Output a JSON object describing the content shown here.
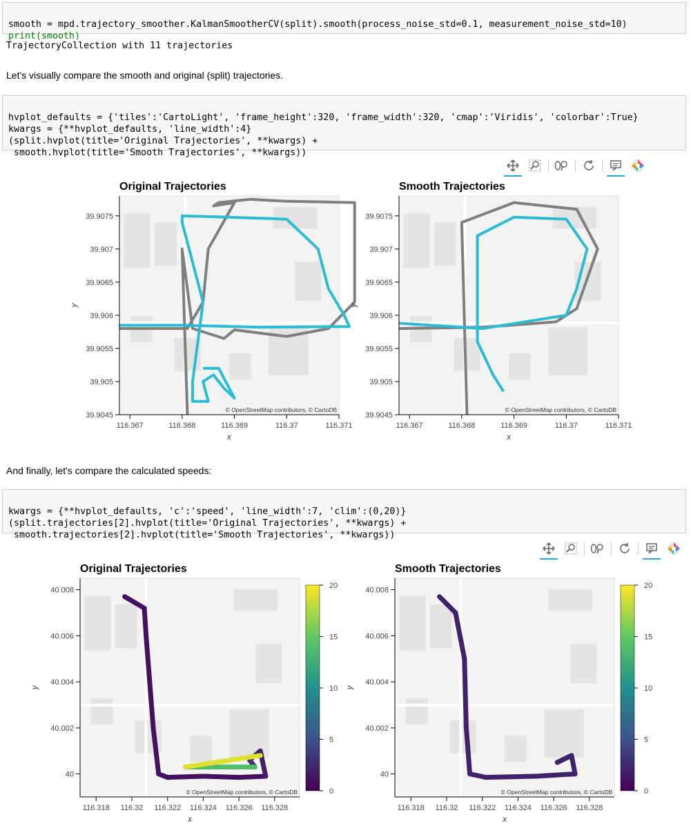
{
  "cell1": {
    "line1": "smooth = mpd.trajectory_smoother.KalmanSmootherCV(split).smooth(process_noise_std=0.1, measurement_noise_std=10)",
    "line2": "print(smooth)"
  },
  "out1": "TrajectoryCollection with 11 trajectories",
  "md1": "Let's visually compare the smooth and original (split) trajectories.",
  "cell2": {
    "line1": "hvplot_defaults = {'tiles':'CartoLight', 'frame_height':320, 'frame_width':320, 'cmap':'Viridis', 'colorbar':True}",
    "line2": "kwargs = {**hvplot_defaults, 'line_width':4}",
    "line3": "(split.hvplot(title='Original Trajectories', **kwargs) +",
    "line4": " smooth.hvplot(title='Smooth Trajectories', **kwargs))"
  },
  "md2": "And finally, let's compare the calculated speeds:",
  "cell3": {
    "line1": "kwargs = {**hvplot_defaults, 'c':'speed', 'line_width':7, 'clim':(0,20)}",
    "line2": "(split.trajectories[2].hvplot(title='Original Trajectories', **kwargs) +",
    "line3": " smooth.trajectories[2].hvplot(title='Smooth Trajectories', **kwargs))"
  },
  "toolbar_icons": [
    "pan-icon",
    "box-zoom-icon",
    "wheel-zoom-icon",
    "reset-icon",
    "hover-icon",
    "bokeh-logo-icon"
  ],
  "attribution": "© OpenStreetMap contributors, © CartoDB",
  "colors": {
    "teal": "#2bbcd4",
    "gray": "#7f7f7f",
    "viridis_low": "#440154",
    "viridis_high": "#fde725"
  },
  "chart_data": [
    {
      "type": "line",
      "title": "Original Trajectories",
      "xlabel": "x",
      "ylabel": "y",
      "xticks": [
        "116.367",
        "116.368",
        "116.369",
        "116.37",
        "116.371"
      ],
      "yticks": [
        "39.9045",
        "39.905",
        "39.9055",
        "39.906",
        "39.9065",
        "39.907",
        "39.9075"
      ],
      "xlim": [
        116.3668,
        116.371
      ],
      "ylim": [
        39.9045,
        39.9078
      ],
      "series": [
        {
          "color": "#7f7f7f",
          "x": [
            116.3668,
            116.3681,
            116.3684,
            116.3685,
            116.369,
            116.3686,
            116.3687,
            116.3693,
            116.37,
            116.3713,
            116.3713,
            116.3708,
            116.37,
            116.369,
            116.3688,
            116.3682,
            116.368,
            116.3681
          ],
          "y": [
            39.9058,
            39.9058,
            39.9062,
            39.907,
            39.9077,
            39.90765,
            39.9077,
            39.90775,
            39.90772,
            39.9077,
            39.9062,
            39.9058,
            39.90568,
            39.90578,
            39.90565,
            39.9058,
            39.907,
            39.9045
          ]
        },
        {
          "color": "#2bbcd4",
          "x": [
            116.3668,
            116.368,
            116.3695,
            116.3712,
            116.3711,
            116.3708,
            116.3706,
            116.37,
            116.3689,
            116.368,
            116.368,
            116.3684,
            116.3682,
            116.3682,
            116.3685,
            116.3684,
            116.3686,
            116.3688,
            116.369,
            116.3687,
            116.3684
          ],
          "y": [
            39.90585,
            39.90585,
            39.90582,
            39.90583,
            39.906,
            39.9064,
            39.907,
            39.90745,
            39.90748,
            39.9075,
            39.9074,
            39.9062,
            39.905,
            39.9047,
            39.9047,
            39.905,
            39.9051,
            39.9049,
            39.90475,
            39.9052,
            39.9052
          ]
        }
      ]
    },
    {
      "type": "line",
      "title": "Smooth Trajectories",
      "xlabel": "x",
      "ylabel": "y",
      "xticks": [
        "116.367",
        "116.368",
        "116.369",
        "116.37",
        "116.371"
      ],
      "yticks": [
        "39.9045",
        "39.905",
        "39.9055",
        "39.906",
        "39.9065",
        "39.907",
        "39.9075"
      ],
      "xlim": [
        116.3668,
        116.371
      ],
      "ylim": [
        39.9045,
        39.9078
      ],
      "series": [
        {
          "color": "#7f7f7f",
          "x": [
            116.3668,
            116.3684,
            116.3698,
            116.3702,
            116.3706,
            116.3702,
            116.369,
            116.368,
            116.3681
          ],
          "y": [
            39.9058,
            39.90582,
            39.9059,
            39.9061,
            39.907,
            39.9076,
            39.9077,
            39.9074,
            39.9045
          ]
        },
        {
          "color": "#2bbcd4",
          "x": [
            116.3668,
            116.3684,
            116.37,
            116.3702,
            116.3704,
            116.37,
            116.369,
            116.3683,
            116.3683,
            116.3686,
            116.3688
          ],
          "y": [
            39.90588,
            39.9058,
            39.906,
            39.9064,
            39.907,
            39.90745,
            39.90748,
            39.9072,
            39.9056,
            39.9051,
            39.90485
          ]
        }
      ]
    },
    {
      "type": "line",
      "title": "Original Trajectories",
      "xlabel": "x",
      "ylabel": "y",
      "xticks": [
        "116.318",
        "116.32",
        "116.322",
        "116.324",
        "116.326",
        "116.328"
      ],
      "yticks": [
        "40",
        "40.002",
        "40.004",
        "40.006",
        "40.008"
      ],
      "xlim": [
        116.3171,
        116.3294
      ],
      "ylim": [
        39.999,
        40.0085
      ],
      "colorbar": {
        "ticks": [
          "0",
          "5",
          "10",
          "15",
          "20"
        ],
        "clim": [
          0,
          20
        ],
        "cmap": "Viridis"
      },
      "path": {
        "x": [
          116.3196,
          116.3207,
          116.3208,
          116.321,
          116.3212,
          116.3215,
          116.322,
          116.324,
          116.326,
          116.3275,
          116.3272,
          116.3266,
          116.3269,
          116.323,
          116.3272
        ],
        "y": [
          40.0077,
          40.0072,
          40.006,
          40.004,
          40.002,
          40.0,
          39.99985,
          39.9999,
          39.99985,
          39.9999,
          40.001,
          40.0006,
          40.0003,
          40.0003,
          40.0008
        ],
        "speed": [
          1,
          1,
          1,
          1,
          1,
          1,
          1,
          1,
          1,
          1,
          2,
          2,
          3,
          14,
          19
        ]
      }
    },
    {
      "type": "line",
      "title": "Smooth Trajectories",
      "xlabel": "x",
      "ylabel": "y",
      "xticks": [
        "116.318",
        "116.32",
        "116.322",
        "116.324",
        "116.326",
        "116.328"
      ],
      "yticks": [
        "40",
        "40.002",
        "40.004",
        "40.006",
        "40.008"
      ],
      "xlim": [
        116.3171,
        116.3294
      ],
      "ylim": [
        39.999,
        40.0085
      ],
      "colorbar": {
        "ticks": [
          "0",
          "5",
          "10",
          "15",
          "20"
        ],
        "clim": [
          0,
          20
        ],
        "cmap": "Viridis"
      },
      "path": {
        "x": [
          116.3196,
          116.3205,
          116.321,
          116.3211,
          116.3213,
          116.3222,
          116.325,
          116.3272,
          116.327,
          116.3262,
          116.327
        ],
        "y": [
          40.0077,
          40.007,
          40.005,
          40.002,
          40.0,
          39.99985,
          39.9999,
          40.0,
          40.0008,
          40.0005,
          40.0008
        ],
        "speed": [
          2,
          2,
          2,
          2,
          2,
          2,
          2,
          2,
          2,
          2,
          2
        ]
      }
    }
  ]
}
